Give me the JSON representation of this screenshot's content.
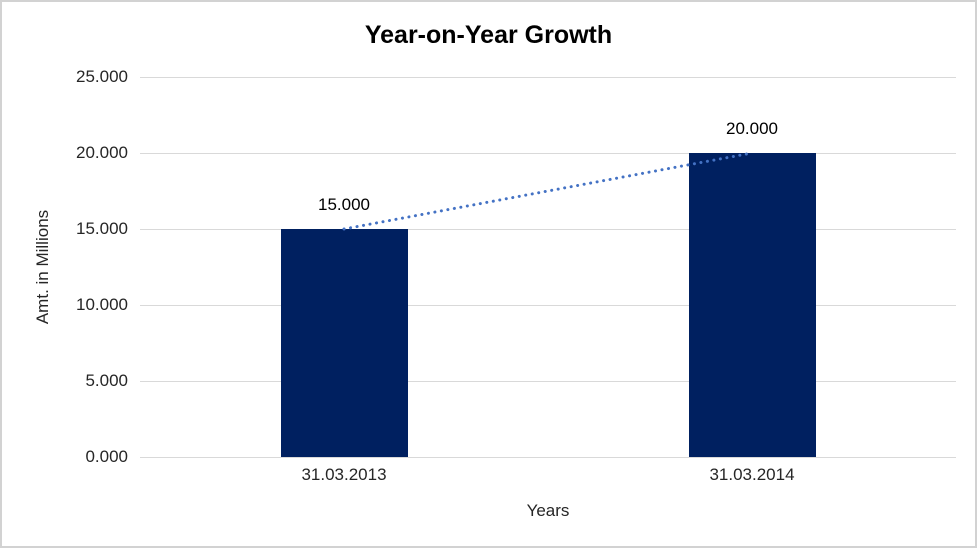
{
  "window": {
    "background": "#ffffff",
    "frame_border_color": "#d2d2d2"
  },
  "chart_data": {
    "type": "bar",
    "title": "Year-on-Year Growth",
    "xlabel": "Years",
    "ylabel": "Amt. in Millions",
    "categories": [
      "31.03.2013",
      "31.03.2014"
    ],
    "values": [
      15000,
      20000
    ],
    "value_labels": [
      "15.000",
      "20.000"
    ],
    "ylim": [
      0,
      25000
    ],
    "ytick_interval": 5000,
    "ytick_labels": [
      "0.000",
      "5.000",
      "10.000",
      "15.000",
      "20.000",
      "25.000"
    ],
    "grid": true,
    "legend_position": "none",
    "bar_color": "#002060",
    "gridline_color": "#d9d9d9",
    "trendline": {
      "style": "dotted",
      "color": "#4472c4",
      "from_category": "31.03.2013",
      "from_value": 15000,
      "to_category": "31.03.2014",
      "to_value": 20000
    }
  }
}
